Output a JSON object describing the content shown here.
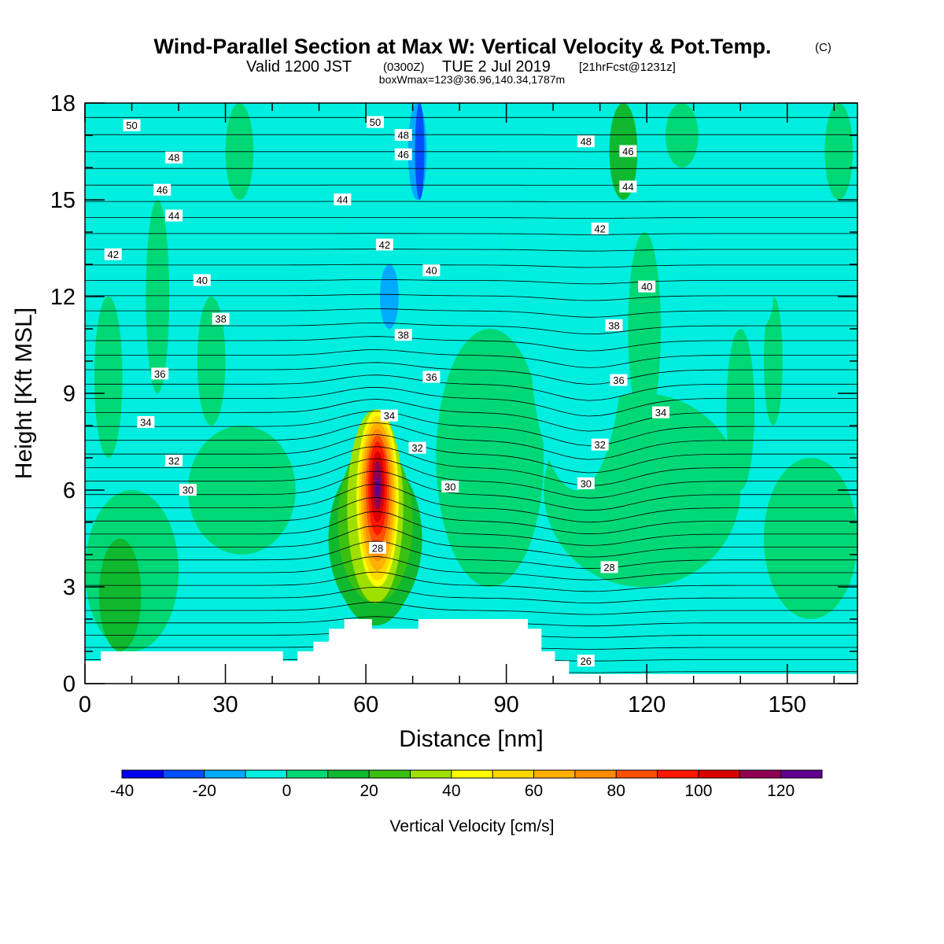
{
  "header": {
    "title": "Wind-Parallel Section at Max W: Vertical Velocity & Pot.Temp.",
    "title_units": "(C)",
    "valid_prefix": "Valid 1200 JST",
    "valid_utc": "(0300Z)",
    "valid_date": "TUE 2 Jul 2019",
    "forecast_info": "[21hrFcst@1231z]",
    "box_info": "boxWmax=123@36.96,140.34,1787m"
  },
  "chart_data": {
    "type": "heatmap",
    "xlabel": "Distance [nm]",
    "ylabel": "Height [Kft MSL]",
    "xlim": [
      0,
      165
    ],
    "ylim": [
      0,
      18
    ],
    "x_ticks": [
      0,
      30,
      60,
      90,
      120,
      150
    ],
    "y_ticks": [
      0,
      3,
      6,
      9,
      12,
      15,
      18
    ],
    "background_level_color": "#00eee0",
    "fill_colors": {
      "-40": "#0000ee",
      "-30": "#0050ff",
      "-20": "#00aaff",
      "-10": "#00eee0",
      "0": "#00d876",
      "10": "#10b830",
      "20": "#3ac010",
      "30": "#a0e000",
      "40": "#ffff00",
      "50": "#ffd800",
      "60": "#ffb000",
      "70": "#ff8c00",
      "80": "#ff5000",
      "90": "#ff1800",
      "100": "#d80000",
      "110": "#900050",
      "120": "#600090"
    },
    "colorbar": {
      "label": "Vertical Velocity [cm/s]",
      "levels": [
        -40,
        -30,
        -20,
        -10,
        0,
        10,
        20,
        30,
        40,
        50,
        60,
        70,
        80,
        90,
        100,
        110,
        120,
        130
      ],
      "colors": [
        "#0000ee",
        "#0050ff",
        "#00aaff",
        "#00eee0",
        "#00d876",
        "#10b830",
        "#3ac010",
        "#a0e000",
        "#ffff00",
        "#ffd800",
        "#ffb000",
        "#ff8c00",
        "#ff5000",
        "#ff1800",
        "#d80000",
        "#900050",
        "#600090"
      ],
      "tick_labels": [
        "-40",
        "-20",
        "0",
        "20",
        "40",
        "60",
        "80",
        "100",
        "120"
      ],
      "tick_values": [
        -40,
        -20,
        0,
        20,
        40,
        60,
        80,
        100,
        120
      ]
    },
    "terrain": [
      [
        0,
        0.7
      ],
      [
        3.4,
        0.7
      ],
      [
        3.4,
        1.0
      ],
      [
        42.3,
        1.0
      ],
      [
        42.3,
        0.7
      ],
      [
        45.4,
        0.7
      ],
      [
        45.4,
        1.0
      ],
      [
        48.8,
        1.0
      ],
      [
        48.8,
        1.3
      ],
      [
        52.1,
        1.3
      ],
      [
        52.1,
        1.7
      ],
      [
        55.4,
        1.7
      ],
      [
        55.4,
        2.0
      ],
      [
        61.3,
        2.0
      ],
      [
        61.3,
        1.7
      ],
      [
        71.2,
        1.7
      ],
      [
        71.2,
        2.0
      ],
      [
        94.6,
        2.0
      ],
      [
        94.6,
        1.7
      ],
      [
        97.5,
        1.7
      ],
      [
        97.5,
        1.0
      ],
      [
        100.4,
        1.0
      ],
      [
        100.4,
        0.7
      ],
      [
        103.4,
        0.7
      ],
      [
        103.4,
        0.3
      ],
      [
        165,
        0.3
      ]
    ],
    "w_regions": [
      {
        "level": 0,
        "x": [
          98,
          140
        ],
        "y": [
          3,
          9
        ]
      },
      {
        "level": 0,
        "x": [
          115,
          138
        ],
        "y": [
          4,
          7
        ]
      },
      {
        "level": 0,
        "x": [
          145,
          165
        ],
        "y": [
          2,
          7
        ]
      },
      {
        "level": 0,
        "x": [
          0,
          20
        ],
        "y": [
          1,
          6
        ]
      },
      {
        "level": 0,
        "x": [
          22,
          45
        ],
        "y": [
          4,
          8
        ]
      },
      {
        "level": 0,
        "x": [
          2,
          8
        ],
        "y": [
          7,
          12
        ]
      },
      {
        "level": 0,
        "x": [
          13,
          18
        ],
        "y": [
          9,
          15
        ]
      },
      {
        "level": 0,
        "x": [
          24,
          30
        ],
        "y": [
          8,
          12
        ]
      },
      {
        "level": 0,
        "x": [
          30,
          36
        ],
        "y": [
          15,
          18
        ]
      },
      {
        "level": 0,
        "x": [
          75,
          98
        ],
        "y": [
          3,
          11
        ]
      },
      {
        "level": 0,
        "x": [
          116,
          123
        ],
        "y": [
          8,
          14
        ]
      },
      {
        "level": 0,
        "x": [
          124,
          131
        ],
        "y": [
          16,
          18
        ]
      },
      {
        "level": 0,
        "x": [
          137,
          143
        ],
        "y": [
          6,
          11
        ]
      },
      {
        "level": 0,
        "x": [
          145,
          149
        ],
        "y": [
          8,
          12
        ]
      },
      {
        "level": 0,
        "x": [
          158,
          164
        ],
        "y": [
          15,
          18
        ]
      },
      {
        "level": 10,
        "x": [
          3,
          12
        ],
        "y": [
          1,
          4.5
        ]
      },
      {
        "level": 10,
        "x": [
          52,
          72
        ],
        "y": [
          2,
          7
        ]
      },
      {
        "level": 10,
        "x": [
          112,
          118
        ],
        "y": [
          15,
          18
        ]
      },
      {
        "level": -10,
        "x": [
          54,
          62
        ],
        "y": [
          11,
          16
        ]
      },
      {
        "level": -10,
        "x": [
          61,
          68
        ],
        "y": [
          10,
          14
        ]
      },
      {
        "level": -10,
        "x": [
          95,
          115
        ],
        "y": [
          6,
          16
        ]
      },
      {
        "level": -10,
        "x": [
          141,
          147
        ],
        "y": [
          11,
          13
        ]
      },
      {
        "level": -10,
        "x": [
          68,
          75
        ],
        "y": [
          15,
          18
        ]
      },
      {
        "level": -10,
        "x": [
          99,
          104
        ],
        "y": [
          1,
          3
        ]
      },
      {
        "level": -20,
        "x": [
          63,
          67
        ],
        "y": [
          11,
          13
        ]
      },
      {
        "level": -20,
        "x": [
          69,
          73
        ],
        "y": [
          15,
          18
        ]
      },
      {
        "level": -30,
        "x": [
          70.5,
          72.5
        ],
        "y": [
          15,
          18
        ]
      },
      {
        "level": 10,
        "x": [
          53,
          71
        ],
        "y": [
          1.8,
          7
        ]
      },
      {
        "level": 20,
        "x": [
          54,
          70
        ],
        "y": [
          2.5,
          7.5
        ]
      },
      {
        "level": 30,
        "x": [
          56,
          68
        ],
        "y": [
          2.5,
          8.5
        ]
      },
      {
        "level": 40,
        "x": [
          58,
          67
        ],
        "y": [
          3,
          8.5
        ]
      },
      {
        "level": 50,
        "x": [
          58.5,
          66.5
        ],
        "y": [
          3.2,
          8.3
        ]
      },
      {
        "level": 60,
        "x": [
          59,
          66
        ],
        "y": [
          3.5,
          8.1
        ]
      },
      {
        "level": 70,
        "x": [
          59.5,
          65.5
        ],
        "y": [
          3.8,
          7.9
        ]
      },
      {
        "level": 80,
        "x": [
          60,
          65
        ],
        "y": [
          4.2,
          7.7
        ]
      },
      {
        "level": 90,
        "x": [
          60.5,
          64.5
        ],
        "y": [
          4.6,
          7.5
        ]
      },
      {
        "level": 100,
        "x": [
          61,
          64
        ],
        "y": [
          5,
          7.2
        ]
      },
      {
        "level": 110,
        "x": [
          61.5,
          63.5
        ],
        "y": [
          5.4,
          6.9
        ]
      },
      {
        "level": 120,
        "x": [
          62,
          63
        ],
        "y": [
          5.8,
          6.4
        ]
      }
    ],
    "theta_labels": [
      {
        "value": "50",
        "x": 10,
        "y": 17.3
      },
      {
        "value": "48",
        "x": 19,
        "y": 16.3
      },
      {
        "value": "46",
        "x": 16.5,
        "y": 15.3
      },
      {
        "value": "44",
        "x": 19,
        "y": 14.5
      },
      {
        "value": "42",
        "x": 6,
        "y": 13.3
      },
      {
        "value": "40",
        "x": 25,
        "y": 12.5
      },
      {
        "value": "38",
        "x": 29,
        "y": 11.3
      },
      {
        "value": "36",
        "x": 16,
        "y": 9.6
      },
      {
        "value": "34",
        "x": 13,
        "y": 8.1
      },
      {
        "value": "32",
        "x": 19,
        "y": 6.9
      },
      {
        "value": "30",
        "x": 22,
        "y": 6.0
      },
      {
        "value": "50",
        "x": 62,
        "y": 17.4
      },
      {
        "value": "48",
        "x": 68,
        "y": 17.0
      },
      {
        "value": "46",
        "x": 68,
        "y": 16.4
      },
      {
        "value": "44",
        "x": 55,
        "y": 15.0
      },
      {
        "value": "42",
        "x": 64,
        "y": 13.6
      },
      {
        "value": "40",
        "x": 74,
        "y": 12.8
      },
      {
        "value": "38",
        "x": 68,
        "y": 10.8
      },
      {
        "value": "36",
        "x": 74,
        "y": 9.5
      },
      {
        "value": "34",
        "x": 65,
        "y": 8.3
      },
      {
        "value": "32",
        "x": 71,
        "y": 7.3
      },
      {
        "value": "30",
        "x": 78,
        "y": 6.1
      },
      {
        "value": "28",
        "x": 62.5,
        "y": 4.2
      },
      {
        "value": "48",
        "x": 107,
        "y": 16.8
      },
      {
        "value": "46",
        "x": 116,
        "y": 16.5
      },
      {
        "value": "44",
        "x": 116,
        "y": 15.4
      },
      {
        "value": "42",
        "x": 110,
        "y": 14.1
      },
      {
        "value": "40",
        "x": 120,
        "y": 12.3
      },
      {
        "value": "38",
        "x": 113,
        "y": 11.1
      },
      {
        "value": "36",
        "x": 114,
        "y": 9.4
      },
      {
        "value": "34",
        "x": 123,
        "y": 8.4
      },
      {
        "value": "32",
        "x": 110,
        "y": 7.4
      },
      {
        "value": "30",
        "x": 107,
        "y": 6.2
      },
      {
        "value": "28",
        "x": 112,
        "y": 3.6
      },
      {
        "value": "26",
        "x": 107,
        "y": 0.7
      }
    ]
  }
}
